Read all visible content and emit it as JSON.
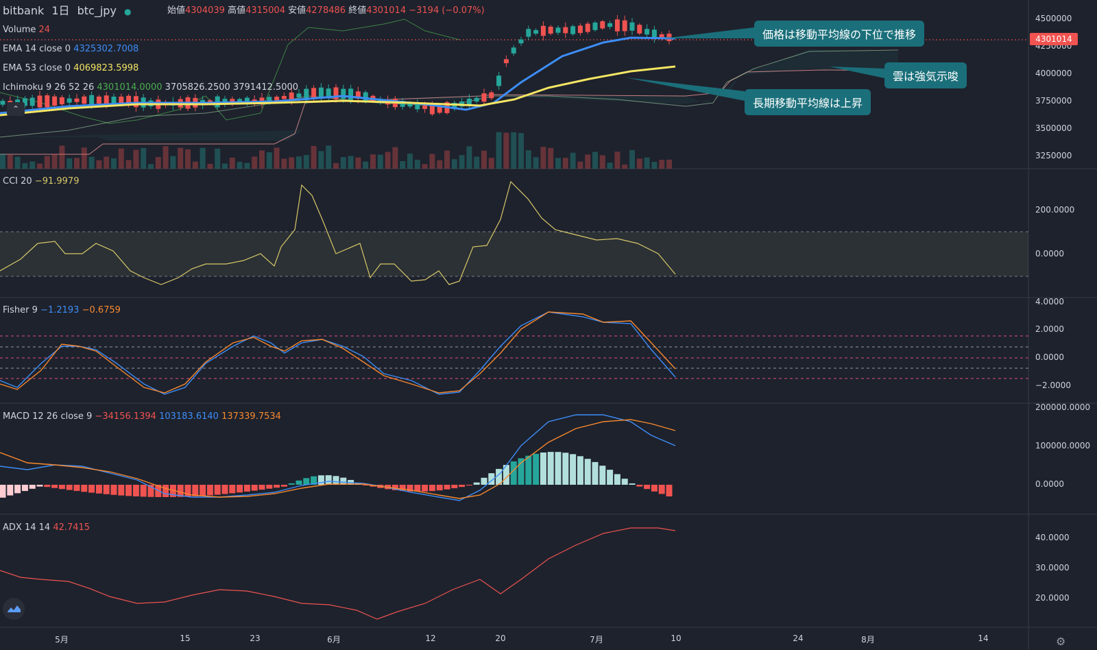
{
  "header": {
    "exchange": "bitbank",
    "interval": "1日",
    "symbol": "btc_jpy",
    "open_label": "始値",
    "open": "4304039",
    "high_label": "高値",
    "high": "4315004",
    "low_label": "安値",
    "low": "4278486",
    "close_label": "終値",
    "close": "4301014",
    "change": "−3194 (−0.07%)"
  },
  "legends": {
    "volume": {
      "name": "Volume",
      "value": "24"
    },
    "ema14": {
      "name": "EMA 14 close 0",
      "value": "4325302.7008"
    },
    "ema53": {
      "name": "EMA 53 close 0",
      "value": "4069823.5998"
    },
    "ichimoku": {
      "name": "Ichimoku 9 26 52 26",
      "v1": "4301014.0000",
      "v2": "3705826.2500",
      "v3": "3791412.5000"
    },
    "cci": {
      "name": "CCI 20",
      "value": "−91.9979"
    },
    "fisher": {
      "name": "Fisher 9",
      "v1": "−1.2193",
      "v2": "−0.6759"
    },
    "macd": {
      "name": "MACD 12 26 close 9",
      "v1": "−34156.1394",
      "v2": "103183.6140",
      "v3": "137339.7534"
    },
    "adx": {
      "name": "ADX 14 14",
      "value": "42.7415"
    }
  },
  "price_tag": "4301014",
  "price_axis": [
    "4500000",
    "4250000",
    "4000000",
    "3750000",
    "3500000",
    "3250000"
  ],
  "cci_axis": [
    "200.0000",
    "0.0000"
  ],
  "fisher_axis": [
    "4.0000",
    "2.0000",
    "0.0000",
    "−2.0000"
  ],
  "macd_axis": [
    "200000.0000",
    "100000.0000",
    "0.0000"
  ],
  "adx_axis": [
    "40.0000",
    "30.0000",
    "20.0000"
  ],
  "time_axis": [
    "5月",
    "15",
    "23",
    "6月",
    "12",
    "20",
    "7月",
    "10",
    "24",
    "8月",
    "14"
  ],
  "callouts": {
    "c1": "価格は移動平均線の下位で推移",
    "c2": "雲は強気示唆",
    "c3": "長期移動平均線は上昇"
  },
  "colors": {
    "up": "#26a69a",
    "down": "#ef5350",
    "ema14": "#3d8ef7",
    "ema53": "#f5e663",
    "adx": "#ef5350"
  }
}
